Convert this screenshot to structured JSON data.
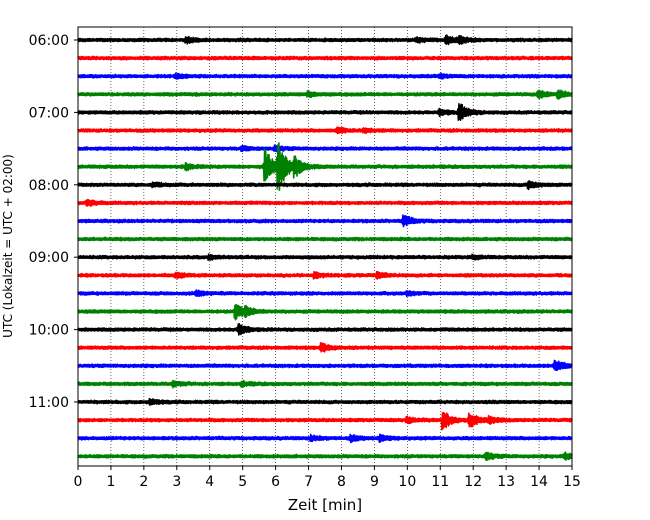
{
  "chart_data": {
    "type": "line",
    "subtype": "helicorder",
    "xlabel": "Zeit  [min]",
    "ylabel": "UTC (Lokalzeit = UTC + 02:00)",
    "xlim": [
      0,
      15
    ],
    "x_ticks": [
      "0",
      "1",
      "2",
      "3",
      "4",
      "5",
      "6",
      "7",
      "8",
      "9",
      "10",
      "11",
      "12",
      "13",
      "14",
      "15"
    ],
    "y_tick_labels": [
      "06:00",
      "07:00",
      "08:00",
      "09:00",
      "10:00",
      "11:00"
    ],
    "traces_per_hour": 4,
    "trace_minutes": 15,
    "grid": "vertical dotted lines at each minute",
    "trace_colors": [
      "#000000",
      "#ff0000",
      "#0000ff",
      "#008000"
    ],
    "traces": [
      {
        "start": "06:00",
        "events": [
          {
            "minute": 3.3,
            "amplitude": 0.3
          },
          {
            "minute": 10.3,
            "amplitude": 0.25
          },
          {
            "minute": 11.2,
            "amplitude": 0.45
          },
          {
            "minute": 11.6,
            "amplitude": 0.3
          }
        ]
      },
      {
        "start": "06:15",
        "events": []
      },
      {
        "start": "06:30",
        "events": [
          {
            "minute": 3.0,
            "amplitude": 0.2
          },
          {
            "minute": 11.0,
            "amplitude": 0.2
          }
        ]
      },
      {
        "start": "06:45",
        "events": [
          {
            "minute": 7.0,
            "amplitude": 0.25
          },
          {
            "minute": 14.0,
            "amplitude": 0.4
          },
          {
            "minute": 14.6,
            "amplitude": 0.4
          }
        ]
      },
      {
        "start": "07:00",
        "events": [
          {
            "minute": 11.0,
            "amplitude": 0.3
          },
          {
            "minute": 11.6,
            "amplitude": 0.9
          }
        ]
      },
      {
        "start": "07:15",
        "events": [
          {
            "minute": 7.9,
            "amplitude": 0.3
          },
          {
            "minute": 8.7,
            "amplitude": 0.2
          }
        ]
      },
      {
        "start": "07:30",
        "events": [
          {
            "minute": 5.0,
            "amplitude": 0.2
          },
          {
            "minute": 6.0,
            "amplitude": 0.25
          }
        ]
      },
      {
        "start": "07:45",
        "events": [
          {
            "minute": 3.3,
            "amplitude": 0.3
          },
          {
            "minute": 5.7,
            "amplitude": 1.8
          },
          {
            "minute": 6.1,
            "amplitude": 2.5
          },
          {
            "minute": 6.6,
            "amplitude": 0.8
          }
        ]
      },
      {
        "start": "08:00",
        "events": [
          {
            "minute": 2.3,
            "amplitude": 0.2
          },
          {
            "minute": 13.7,
            "amplitude": 0.4
          }
        ]
      },
      {
        "start": "08:15",
        "events": [
          {
            "minute": 0.3,
            "amplitude": 0.3
          }
        ]
      },
      {
        "start": "08:30",
        "events": [
          {
            "minute": 9.9,
            "amplitude": 0.55
          }
        ]
      },
      {
        "start": "08:45",
        "events": []
      },
      {
        "start": "09:00",
        "events": [
          {
            "minute": 4.0,
            "amplitude": 0.2
          },
          {
            "minute": 12.0,
            "amplitude": 0.2
          }
        ]
      },
      {
        "start": "09:15",
        "events": [
          {
            "minute": 3.0,
            "amplitude": 0.25
          },
          {
            "minute": 7.2,
            "amplitude": 0.25
          },
          {
            "minute": 9.1,
            "amplitude": 0.3
          }
        ]
      },
      {
        "start": "09:30",
        "events": [
          {
            "minute": 3.6,
            "amplitude": 0.25
          },
          {
            "minute": 10.0,
            "amplitude": 0.2
          }
        ]
      },
      {
        "start": "09:45",
        "events": [
          {
            "minute": 4.8,
            "amplitude": 0.8
          },
          {
            "minute": 5.1,
            "amplitude": 0.3
          }
        ]
      },
      {
        "start": "10:00",
        "events": [
          {
            "minute": 4.9,
            "amplitude": 0.55
          }
        ]
      },
      {
        "start": "10:15",
        "events": [
          {
            "minute": 7.4,
            "amplitude": 0.45
          }
        ]
      },
      {
        "start": "10:30",
        "events": [
          {
            "minute": 14.5,
            "amplitude": 0.6
          }
        ]
      },
      {
        "start": "10:45",
        "events": [
          {
            "minute": 2.9,
            "amplitude": 0.25
          },
          {
            "minute": 5.0,
            "amplitude": 0.2
          }
        ]
      },
      {
        "start": "11:00",
        "events": [
          {
            "minute": 2.2,
            "amplitude": 0.3
          }
        ]
      },
      {
        "start": "11:15",
        "events": [
          {
            "minute": 10.0,
            "amplitude": 0.25
          },
          {
            "minute": 11.1,
            "amplitude": 0.95
          },
          {
            "minute": 11.9,
            "amplitude": 0.75
          },
          {
            "minute": 12.5,
            "amplitude": 0.3
          }
        ]
      },
      {
        "start": "11:30",
        "events": [
          {
            "minute": 7.1,
            "amplitude": 0.25
          },
          {
            "minute": 8.3,
            "amplitude": 0.3
          },
          {
            "minute": 9.2,
            "amplitude": 0.3
          }
        ]
      },
      {
        "start": "11:45",
        "events": [
          {
            "minute": 12.4,
            "amplitude": 0.35
          },
          {
            "minute": 14.8,
            "amplitude": 0.3
          }
        ]
      }
    ]
  }
}
